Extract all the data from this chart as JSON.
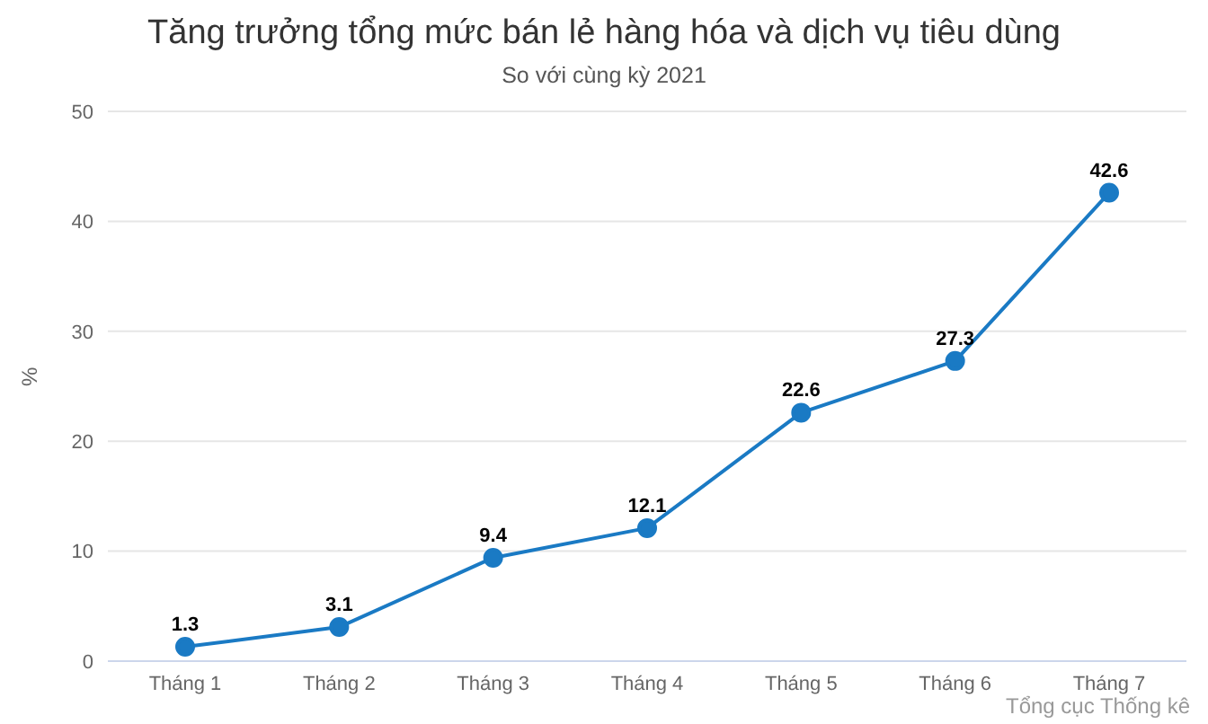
{
  "chart_data": {
    "type": "line",
    "title": "Tăng trưởng tổng mức bán lẻ hàng hóa và dịch vụ tiêu dùng",
    "subtitle": "So với cùng kỳ 2021",
    "ylabel": "%",
    "categories": [
      "Tháng 1",
      "Tháng 2",
      "Tháng 3",
      "Tháng 4",
      "Tháng 5",
      "Tháng 6",
      "Tháng 7"
    ],
    "series": [
      {
        "color": "#1a7ac4",
        "values": [
          1.3,
          3.1,
          9.4,
          12.1,
          22.6,
          27.3,
          42.6
        ]
      }
    ],
    "ylim": [
      0,
      50
    ],
    "yticks": [
      0,
      10,
      20,
      30,
      40,
      50
    ],
    "grid": "y",
    "marker": "circle",
    "data_labels": true,
    "legend": false,
    "annotations": [
      "Tổng cục Thống kê"
    ]
  }
}
